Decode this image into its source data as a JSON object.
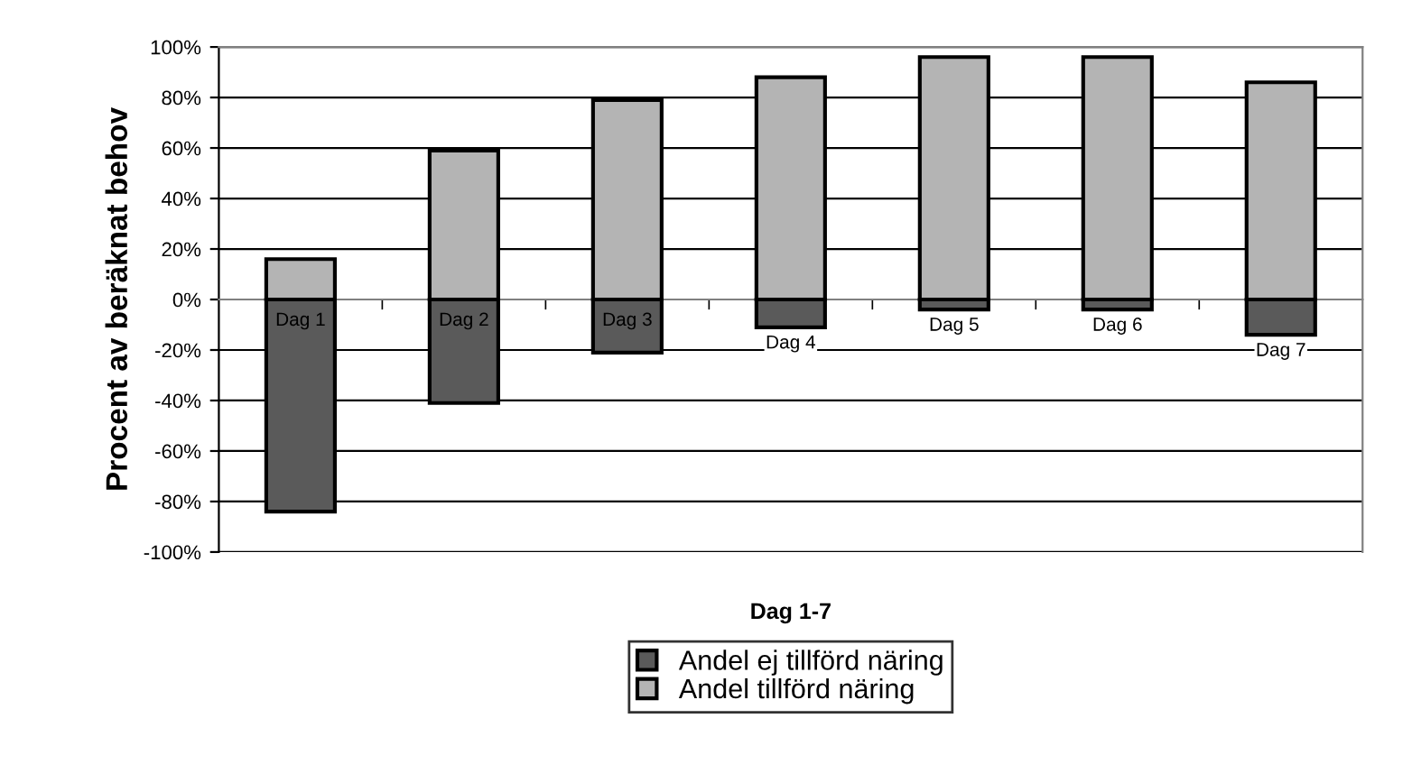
{
  "chart_data": {
    "type": "bar",
    "stacked": true,
    "xlabel": "Dag 1-7",
    "ylabel": "Procent av beräknat behov",
    "categories": [
      "Dag 1",
      "Dag 2",
      "Dag 3",
      "Dag 4",
      "Dag 5",
      "Dag 6",
      "Dag 7"
    ],
    "series": [
      {
        "name": "Andel ej tillförd näring",
        "color": "#5a5a5a",
        "values": [
          -84,
          -41,
          -21,
          -11,
          -4,
          -4,
          -14
        ]
      },
      {
        "name": "Andel tillförd näring",
        "color": "#b4b4b4",
        "values": [
          16,
          59,
          79,
          88,
          96,
          96,
          86
        ]
      }
    ],
    "ylim": [
      -100,
      100
    ],
    "yticks": [
      {
        "value": -100,
        "label": "-100%"
      },
      {
        "value": -80,
        "label": "-80%"
      },
      {
        "value": -60,
        "label": "-60%"
      },
      {
        "value": -40,
        "label": "-40%"
      },
      {
        "value": -20,
        "label": "-20%"
      },
      {
        "value": 0,
        "label": "0%"
      },
      {
        "value": 20,
        "label": "20%"
      },
      {
        "value": 40,
        "label": "40%"
      },
      {
        "value": 60,
        "label": "60%"
      },
      {
        "value": 80,
        "label": "80%"
      },
      {
        "value": 100,
        "label": "100%"
      }
    ],
    "grid": "y",
    "legend": "bottom"
  }
}
